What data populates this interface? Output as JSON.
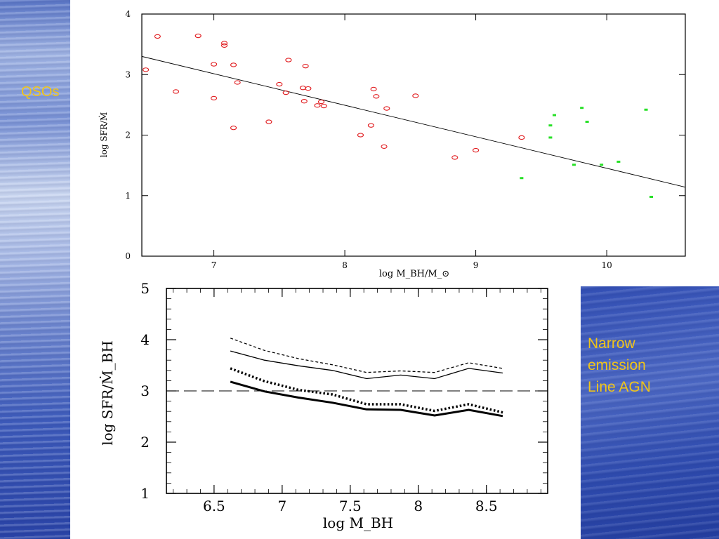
{
  "labels": {
    "qsos": "QSOs",
    "narrow_line_agn": [
      "Narrow",
      "emission",
      "Line AGN"
    ]
  },
  "colors": {
    "label_text": "#f0c419",
    "qso_points": "#e0181b",
    "nla_points": "#27e027"
  },
  "chart_data": [
    {
      "type": "scatter",
      "xlabel": "log M_BH/M_⊙",
      "ylabel": "log SFR/Ṁ",
      "xlim": [
        6.45,
        10.6
      ],
      "ylim": [
        0,
        4
      ],
      "x_ticks": [
        "7",
        "8",
        "9",
        "10"
      ],
      "y_ticks": [
        "0",
        "1",
        "2",
        "3",
        "4"
      ],
      "grid": false,
      "series": [
        {
          "marker": "open-circle",
          "color": "#e0181b",
          "points": [
            [
              6.48,
              3.08
            ],
            [
              6.57,
              3.63
            ],
            [
              6.71,
              2.72
            ],
            [
              6.88,
              3.64
            ],
            [
              7.0,
              3.17
            ],
            [
              7.0,
              2.61
            ],
            [
              7.08,
              3.52
            ],
            [
              7.08,
              3.48
            ],
            [
              7.15,
              3.16
            ],
            [
              7.15,
              2.12
            ],
            [
              7.18,
              2.87
            ],
            [
              7.42,
              2.22
            ],
            [
              7.5,
              2.84
            ],
            [
              7.55,
              2.7
            ],
            [
              7.57,
              3.24
            ],
            [
              7.68,
              2.78
            ],
            [
              7.69,
              2.56
            ],
            [
              7.7,
              3.14
            ],
            [
              7.72,
              2.77
            ],
            [
              7.79,
              2.49
            ],
            [
              7.82,
              2.55
            ],
            [
              7.84,
              2.48
            ],
            [
              8.12,
              2.0
            ],
            [
              8.2,
              2.16
            ],
            [
              8.22,
              2.76
            ],
            [
              8.24,
              2.64
            ],
            [
              8.3,
              1.81
            ],
            [
              8.32,
              2.44
            ],
            [
              8.54,
              2.65
            ],
            [
              8.84,
              1.63
            ],
            [
              9.0,
              1.75
            ],
            [
              9.35,
              1.96
            ]
          ]
        },
        {
          "marker": "filled-square",
          "color": "#27e027",
          "points": [
            [
              9.35,
              1.29
            ],
            [
              9.57,
              2.16
            ],
            [
              9.57,
              1.96
            ],
            [
              9.6,
              2.33
            ],
            [
              9.75,
              1.51
            ],
            [
              9.81,
              2.45
            ],
            [
              9.85,
              2.22
            ],
            [
              9.96,
              1.51
            ],
            [
              10.09,
              1.56
            ],
            [
              10.3,
              2.42
            ],
            [
              10.34,
              0.98
            ]
          ]
        }
      ],
      "fit_line": [
        [
          6.45,
          3.3
        ],
        [
          10.6,
          1.14
        ]
      ]
    },
    {
      "type": "line",
      "xlabel": "log M_BH",
      "ylabel": "log SFR/Ṁ_BH",
      "xlim": [
        6.15,
        8.95
      ],
      "ylim": [
        1,
        5
      ],
      "x_ticks": [
        "6.5",
        "7",
        "7.5",
        "8",
        "8.5"
      ],
      "y_ticks": [
        "1",
        "2",
        "3",
        "4",
        "5"
      ],
      "grid": false,
      "reference_line": {
        "y": 3,
        "style": "long-dash"
      },
      "x": [
        6.62,
        6.87,
        7.12,
        7.37,
        7.62,
        7.87,
        8.12,
        8.37,
        8.62
      ],
      "series": [
        {
          "style": "thin-dashed",
          "values": [
            4.03,
            3.79,
            3.63,
            3.51,
            3.36,
            3.39,
            3.36,
            3.55,
            3.44
          ]
        },
        {
          "style": "thin-solid",
          "values": [
            3.78,
            3.6,
            3.49,
            3.4,
            3.24,
            3.31,
            3.24,
            3.44,
            3.35
          ]
        },
        {
          "style": "thick-dotted",
          "values": [
            3.44,
            3.19,
            3.02,
            2.93,
            2.74,
            2.74,
            2.61,
            2.74,
            2.58
          ]
        },
        {
          "style": "thick-solid",
          "values": [
            3.18,
            2.99,
            2.87,
            2.77,
            2.64,
            2.63,
            2.52,
            2.63,
            2.51
          ]
        }
      ]
    }
  ]
}
